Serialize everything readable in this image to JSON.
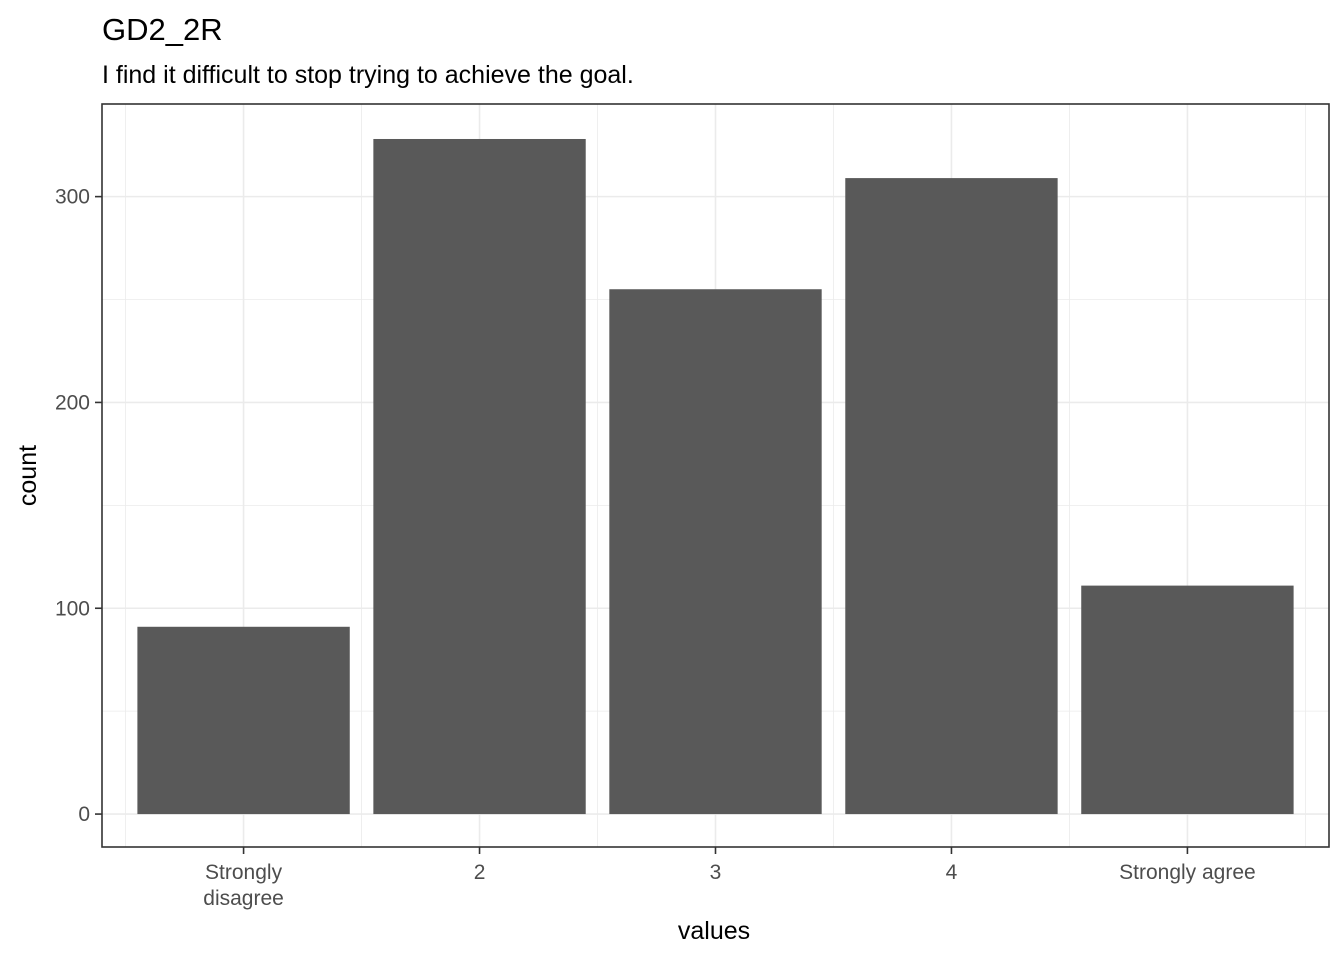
{
  "chart_data": {
    "type": "bar",
    "title": "GD2_2R",
    "subtitle": "I find it difficult to stop trying to achieve the goal.",
    "xlabel": "values",
    "ylabel": "count",
    "categories": [
      "Strongly\ndisagree",
      "2",
      "3",
      "4",
      "Strongly agree"
    ],
    "values": [
      91,
      328,
      255,
      309,
      111
    ],
    "ylim": [
      -16,
      345
    ],
    "y_ticks": [
      0,
      100,
      200,
      300
    ],
    "grid": true,
    "legend": "none",
    "bar_color": "#595959"
  }
}
